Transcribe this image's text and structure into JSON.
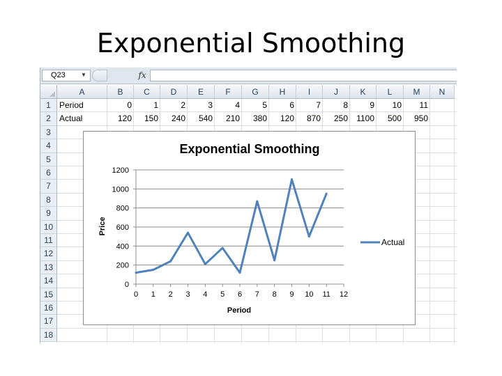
{
  "slide": {
    "title": "Exponential Smoothing"
  },
  "formula_bar": {
    "name_box": "Q23",
    "fx_label": "fx",
    "formula": ""
  },
  "sheet": {
    "columns": [
      "A",
      "B",
      "C",
      "D",
      "E",
      "F",
      "G",
      "H",
      "I",
      "J",
      "K",
      "L",
      "M",
      "N"
    ],
    "rows": [
      "1",
      "2",
      "3",
      "4",
      "5",
      "6",
      "7",
      "8",
      "9",
      "10",
      "11",
      "12",
      "13",
      "14",
      "15",
      "16",
      "17",
      "18"
    ],
    "period_label": "Period",
    "actual_label": "Actual",
    "periods": [
      "0",
      "1",
      "2",
      "3",
      "4",
      "5",
      "6",
      "7",
      "8",
      "9",
      "10",
      "11"
    ],
    "actuals": [
      "120",
      "150",
      "240",
      "540",
      "210",
      "380",
      "120",
      "870",
      "250",
      "1100",
      "500",
      "950"
    ]
  },
  "chart_data": {
    "type": "line",
    "title": "Exponential Smoothing",
    "xlabel": "Period",
    "ylabel": "Price",
    "x": [
      0,
      1,
      2,
      3,
      4,
      5,
      6,
      7,
      8,
      9,
      10,
      11
    ],
    "series": [
      {
        "name": "Actual",
        "values": [
          120,
          150,
          240,
          540,
          210,
          380,
          120,
          870,
          250,
          1100,
          500,
          950
        ],
        "color": "#4f81bd"
      }
    ],
    "xlim": [
      0,
      12
    ],
    "ylim": [
      0,
      1200
    ],
    "x_ticks": [
      0,
      1,
      2,
      3,
      4,
      5,
      6,
      7,
      8,
      9,
      10,
      11,
      12
    ],
    "y_ticks": [
      0,
      200,
      400,
      600,
      800,
      1000,
      1200
    ],
    "grid": "horizontal",
    "legend_position": "right"
  }
}
